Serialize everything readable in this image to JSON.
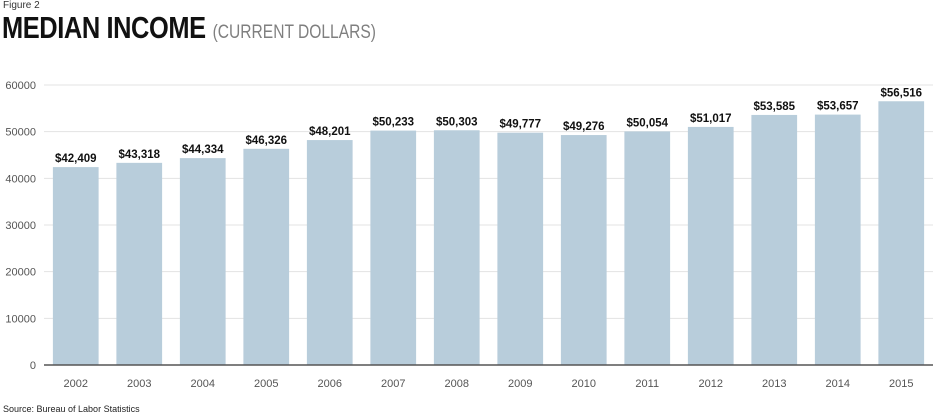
{
  "figure_label": "Figure 2",
  "title": "MEDIAN INCOME",
  "subtitle": "(CURRENT DOLLARS)",
  "source": "Source: Bureau of Labor Statistics",
  "colors": {
    "bar": "#b8cddb",
    "grid": "#e3e3e3",
    "axis": "#555555",
    "tick_text": "#555555",
    "label_text": "#111111"
  },
  "chart_data": {
    "type": "bar",
    "title": "MEDIAN INCOME",
    "subtitle": "(CURRENT DOLLARS)",
    "xlabel": "",
    "ylabel": "",
    "ylim": [
      0,
      60000
    ],
    "yticks": [
      0,
      10000,
      20000,
      30000,
      40000,
      50000,
      60000
    ],
    "grid": true,
    "categories": [
      "2002",
      "2003",
      "2004",
      "2005",
      "2006",
      "2007",
      "2008",
      "2009",
      "2010",
      "2011",
      "2012",
      "2013",
      "2014",
      "2015"
    ],
    "values": [
      42409,
      43318,
      44334,
      46326,
      48201,
      50233,
      50303,
      49777,
      49276,
      50054,
      51017,
      53585,
      53657,
      56516
    ],
    "data_labels": [
      "$42,409",
      "$43,318",
      "$44,334",
      "$46,326",
      "$48,201",
      "$50,233",
      "$50,303",
      "$49,777",
      "$49,276",
      "$50,054",
      "$51,017",
      "$53,585",
      "$53,657",
      "$56,516"
    ]
  }
}
